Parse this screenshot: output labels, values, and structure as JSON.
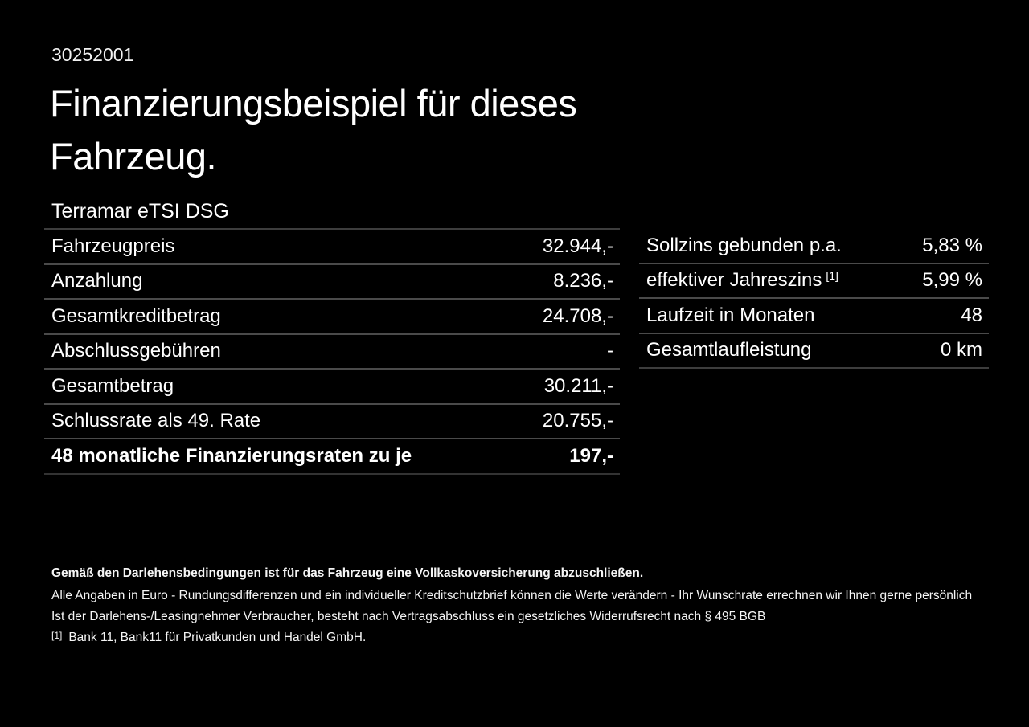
{
  "page": {
    "background": "#000000",
    "text_color": "#ffffff",
    "divider_color": "#4a4a4a"
  },
  "header": {
    "doc_number": "30252001",
    "title_line1": "Finanzierungsbeispiel für dieses",
    "title_line2": "Fahrzeug.",
    "vehicle_model": "Terramar eTSI DSG"
  },
  "finance_table": {
    "rows": [
      {
        "label": "Fahrzeugpreis",
        "value": "32.944,-"
      },
      {
        "label": "Anzahlung",
        "value": "8.236,-"
      },
      {
        "label": "Gesamtkreditbetrag",
        "value": "24.708,-"
      },
      {
        "label": "Abschlussgebühren",
        "value": "-"
      },
      {
        "label": "Gesamtbetrag",
        "value": "30.211,-"
      },
      {
        "label": "Schlussrate als 49. Rate",
        "value": "20.755,-"
      },
      {
        "label": "48 monatliche Finanzierungsraten zu je",
        "value": "197,-"
      }
    ]
  },
  "conditions_table": {
    "rows": [
      {
        "label": "Sollzins gebunden p.a.",
        "value": "5,83 %"
      },
      {
        "label": "effektiver Jahreszins",
        "sup": "[1]",
        "value": "5,99 %"
      },
      {
        "label": "Laufzeit in Monaten",
        "value": "48"
      },
      {
        "label": "Gesamtlaufleistung",
        "value": "0 km"
      }
    ]
  },
  "footer": {
    "insurance_note": "Gemäß den Darlehensbedingungen ist für das Fahrzeug eine Vollkaskoversicherung abzuschließen.",
    "disclaimer_line1": "Alle Angaben in Euro - Rundungsdifferenzen und ein individueller Kreditschutzbrief können die Werte verändern - Ihr Wunschrate errechnen wir Ihnen gerne persönlich",
    "disclaimer_line2": "Ist der Darlehens-/Leasingnehmer Verbraucher, besteht nach Vertragsabschluss ein gesetzliches Widerrufsrecht nach § 495 BGB",
    "footnote_marker": "[1]",
    "footnote_text": "Bank 11, Bank11 für Privatkunden und Handel GmbH."
  }
}
